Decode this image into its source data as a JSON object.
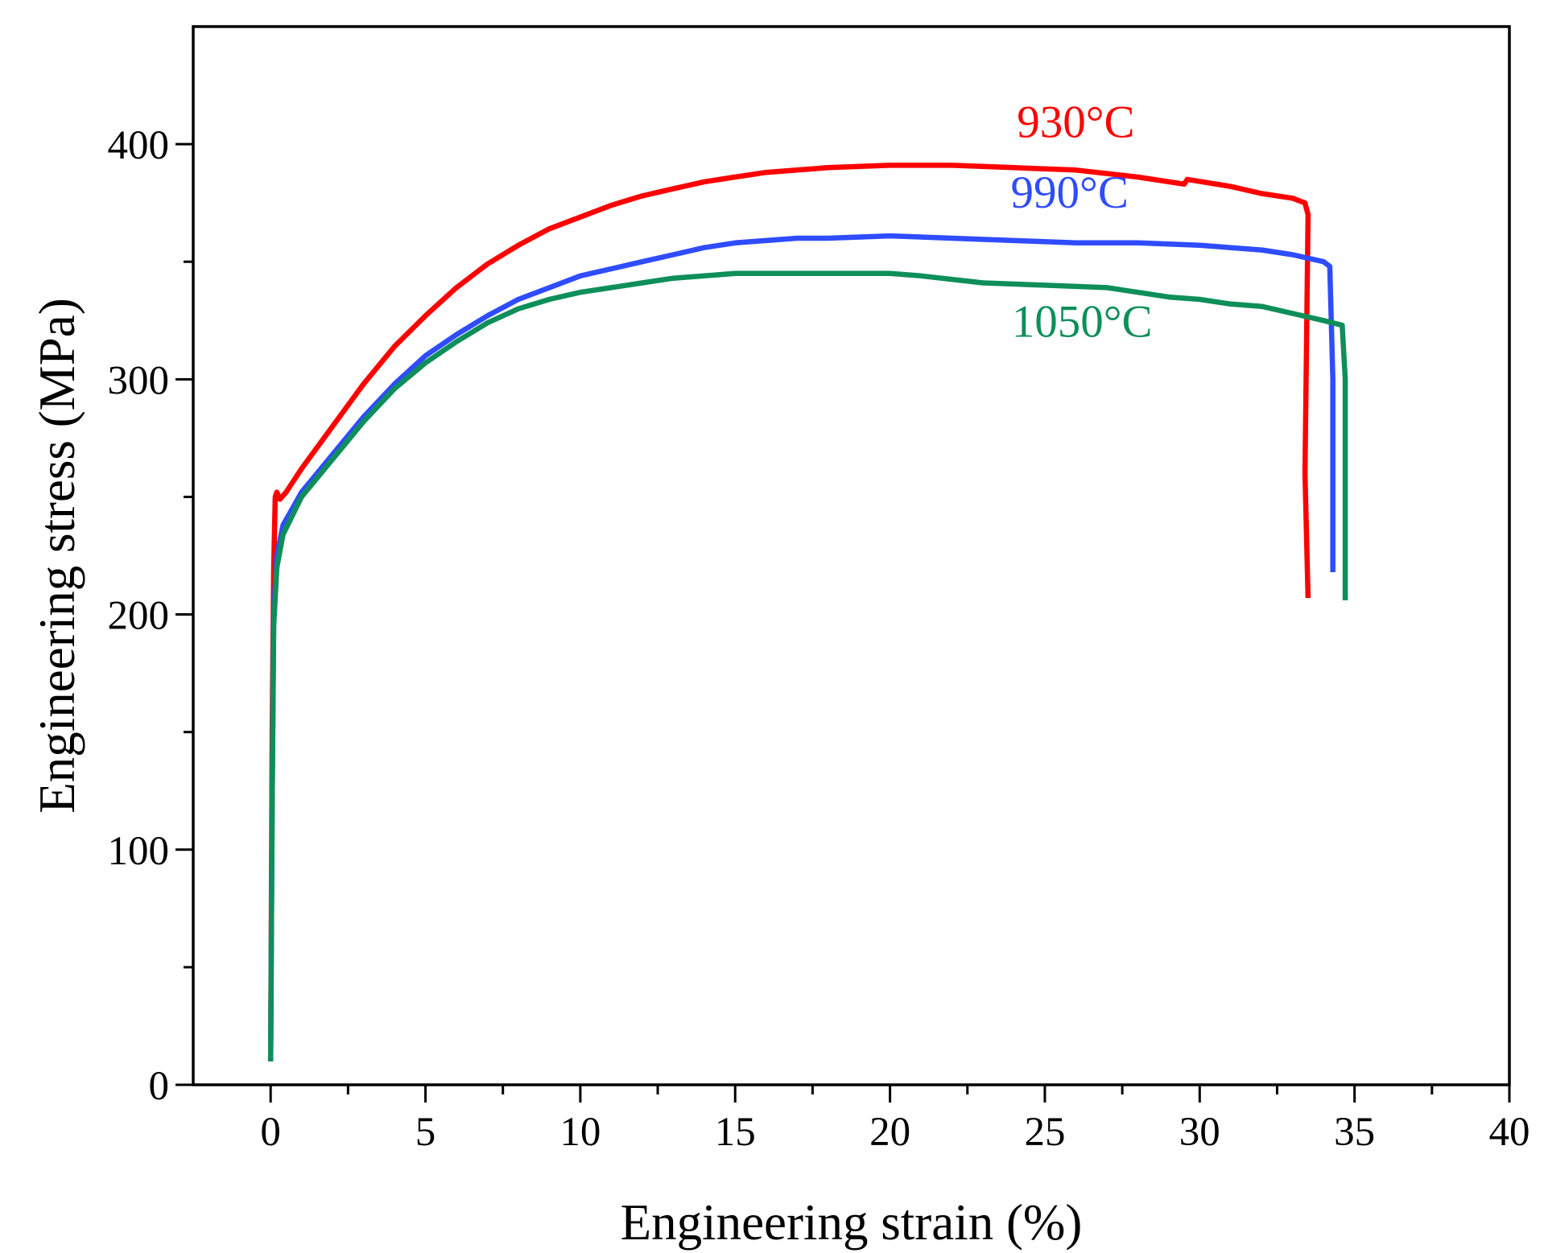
{
  "chart_data": {
    "type": "line",
    "title": "",
    "xlabel": "Engineering strain (%)",
    "ylabel": "Engineering stress (MPa)",
    "xlim": [
      -2.5,
      40
    ],
    "ylim": [
      0,
      450
    ],
    "x_ticks": [
      0,
      5,
      10,
      15,
      20,
      25,
      30,
      35,
      40
    ],
    "x_tick_labels": [
      "0",
      "5",
      "10",
      "15",
      "20",
      "25",
      "30",
      "35",
      "40"
    ],
    "x_minor_ticks": [
      2.5,
      7.5,
      12.5,
      17.5,
      22.5,
      27.5,
      32.5,
      37.5
    ],
    "y_ticks": [
      0,
      100,
      200,
      300,
      400
    ],
    "y_tick_labels": [
      "0",
      "100",
      "200",
      "300",
      "400"
    ],
    "y_minor_ticks": [
      50,
      150,
      250,
      350
    ],
    "grid": false,
    "legend": "none",
    "series": [
      {
        "name": "930°C",
        "color": "#ff0000",
        "label_position": {
          "x": 26,
          "y": 403
        },
        "points": [
          [
            0.0,
            10
          ],
          [
            0.05,
            150
          ],
          [
            0.1,
            220
          ],
          [
            0.15,
            250
          ],
          [
            0.2,
            252
          ],
          [
            0.3,
            249
          ],
          [
            0.5,
            252
          ],
          [
            1,
            262
          ],
          [
            2,
            280
          ],
          [
            3,
            298
          ],
          [
            4,
            314
          ],
          [
            5,
            327
          ],
          [
            6,
            339
          ],
          [
            7,
            349
          ],
          [
            8,
            357
          ],
          [
            9,
            364
          ],
          [
            10,
            369
          ],
          [
            11,
            374
          ],
          [
            12,
            378
          ],
          [
            13,
            381
          ],
          [
            14,
            384
          ],
          [
            15,
            386
          ],
          [
            16,
            388
          ],
          [
            17,
            389
          ],
          [
            18,
            390
          ],
          [
            20,
            391
          ],
          [
            22,
            391
          ],
          [
            24,
            390
          ],
          [
            26,
            389
          ],
          [
            28,
            386
          ],
          [
            29.5,
            383
          ],
          [
            29.6,
            385
          ],
          [
            31,
            382
          ],
          [
            32,
            379
          ],
          [
            33,
            377
          ],
          [
            33.4,
            375
          ],
          [
            33.5,
            370
          ],
          [
            33.4,
            260
          ],
          [
            33.5,
            207
          ]
        ]
      },
      {
        "name": "990°C",
        "color": "#2f4cff",
        "label_position": {
          "x": 25.8,
          "y": 373
        },
        "points": [
          [
            0.0,
            10
          ],
          [
            0.05,
            120
          ],
          [
            0.1,
            200
          ],
          [
            0.2,
            225
          ],
          [
            0.4,
            238
          ],
          [
            0.7,
            245
          ],
          [
            1,
            252
          ],
          [
            2,
            268
          ],
          [
            3,
            284
          ],
          [
            4,
            298
          ],
          [
            5,
            310
          ],
          [
            6,
            319
          ],
          [
            7,
            327
          ],
          [
            8,
            334
          ],
          [
            9,
            339
          ],
          [
            10,
            344
          ],
          [
            11,
            347
          ],
          [
            12,
            350
          ],
          [
            13,
            353
          ],
          [
            14,
            356
          ],
          [
            15,
            358
          ],
          [
            16,
            359
          ],
          [
            17,
            360
          ],
          [
            18,
            360
          ],
          [
            20,
            361
          ],
          [
            22,
            360
          ],
          [
            24,
            359
          ],
          [
            26,
            358
          ],
          [
            28,
            358
          ],
          [
            30,
            357
          ],
          [
            32,
            355
          ],
          [
            33,
            353
          ],
          [
            34.0,
            350
          ],
          [
            34.2,
            348
          ],
          [
            34.3,
            300
          ],
          [
            34.3,
            218
          ]
        ]
      },
      {
        "name": "1050°C",
        "color": "#0e8f5a",
        "label_position": {
          "x": 26.2,
          "y": 318
        },
        "points": [
          [
            0.0,
            10
          ],
          [
            0.05,
            120
          ],
          [
            0.1,
            195
          ],
          [
            0.2,
            220
          ],
          [
            0.4,
            234
          ],
          [
            0.7,
            242
          ],
          [
            1,
            250
          ],
          [
            2,
            266
          ],
          [
            3,
            282
          ],
          [
            4,
            296
          ],
          [
            5,
            307
          ],
          [
            6,
            316
          ],
          [
            7,
            324
          ],
          [
            8,
            330
          ],
          [
            9,
            334
          ],
          [
            10,
            337
          ],
          [
            11,
            339
          ],
          [
            12,
            341
          ],
          [
            13,
            343
          ],
          [
            14,
            344
          ],
          [
            15,
            345
          ],
          [
            17,
            345
          ],
          [
            19,
            345
          ],
          [
            20,
            345
          ],
          [
            21,
            344
          ],
          [
            23,
            341
          ],
          [
            25,
            340
          ],
          [
            27,
            339
          ],
          [
            28,
            337
          ],
          [
            29,
            335
          ],
          [
            30,
            334
          ],
          [
            31,
            332
          ],
          [
            32,
            331
          ],
          [
            33,
            328
          ],
          [
            34,
            325
          ],
          [
            34.6,
            323
          ],
          [
            34.7,
            300
          ],
          [
            34.7,
            206
          ]
        ]
      }
    ]
  }
}
